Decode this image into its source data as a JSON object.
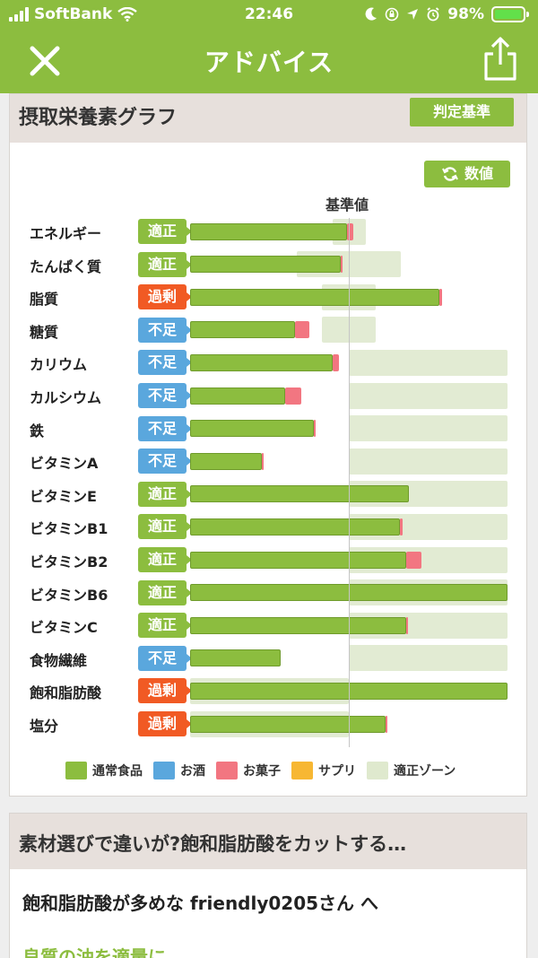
{
  "status_bar": {
    "carrier": "SoftBank",
    "time": "22:46",
    "battery": "98%",
    "battery_level": 0.98
  },
  "header": {
    "title": "アドバイス"
  },
  "icons": {
    "close": "close-icon",
    "share": "share-icon",
    "refresh": "refresh-icon"
  },
  "graph": {
    "title": "摂取栄養素グラフ",
    "criteria_label": "判定基準",
    "value_label": "数値",
    "reference_label": "基準値",
    "nutrients": [
      {
        "name": "エネルギー",
        "status": "適正",
        "food": 0.99,
        "snack": 0.04,
        "zone_from": 0.9,
        "zone_to": 1.11
      },
      {
        "name": "たんぱく質",
        "status": "適正",
        "food": 0.95,
        "snack": 0.01,
        "zone_from": 0.67,
        "zone_to": 1.33
      },
      {
        "name": "脂質",
        "status": "過剰",
        "food": 1.57,
        "snack": 0.02,
        "zone_from": 0.83,
        "zone_to": 1.17
      },
      {
        "name": "糖質",
        "status": "不足",
        "food": 0.66,
        "snack": 0.09,
        "zone_from": 0.83,
        "zone_to": 1.17
      },
      {
        "name": "カリウム",
        "status": "不足",
        "food": 0.9,
        "snack": 0.04,
        "zone_from": 1.0,
        "zone_to": 2.0
      },
      {
        "name": "カルシウム",
        "status": "不足",
        "food": 0.6,
        "snack": 0.1,
        "zone_from": 1.0,
        "zone_to": 2.0
      },
      {
        "name": "鉄",
        "status": "不足",
        "food": 0.78,
        "snack": 0.01,
        "zone_from": 1.0,
        "zone_to": 2.0
      },
      {
        "name": "ビタミンA",
        "status": "不足",
        "food": 0.45,
        "snack": 0.01,
        "zone_from": 1.0,
        "zone_to": 2.0
      },
      {
        "name": "ビタミンE",
        "status": "適正",
        "food": 1.38,
        "snack": 0.0,
        "zone_from": 1.0,
        "zone_to": 2.0
      },
      {
        "name": "ビタミンB1",
        "status": "適正",
        "food": 1.32,
        "snack": 0.02,
        "zone_from": 1.0,
        "zone_to": 2.0
      },
      {
        "name": "ビタミンB2",
        "status": "適正",
        "food": 1.36,
        "snack": 0.1,
        "zone_from": 1.0,
        "zone_to": 2.0
      },
      {
        "name": "ビタミンB6",
        "status": "適正",
        "food": 2.0,
        "snack": 0.0,
        "zone_from": 1.0,
        "zone_to": 2.0
      },
      {
        "name": "ビタミンC",
        "status": "適正",
        "food": 1.36,
        "snack": 0.01,
        "zone_from": 1.0,
        "zone_to": 2.0
      },
      {
        "name": "食物繊維",
        "status": "不足",
        "food": 0.57,
        "snack": 0.0,
        "zone_from": 1.0,
        "zone_to": 2.0
      },
      {
        "name": "飽和脂肪酸",
        "status": "過剰",
        "food": 2.0,
        "snack": 0.0,
        "zone_from": 0.0,
        "zone_to": 1.0
      },
      {
        "name": "塩分",
        "status": "過剰",
        "food": 1.23,
        "snack": 0.01,
        "zone_from": 0.0,
        "zone_to": 1.0
      }
    ],
    "status_colors": {
      "適正": "#8cbd3f",
      "不足": "#5aa7dd",
      "過剰": "#f15a24"
    },
    "legend": [
      {
        "label": "通常食品",
        "color": "#8cbd3f"
      },
      {
        "label": "お酒",
        "color": "#5aa7dd"
      },
      {
        "label": "お菓子",
        "color": "#f27681"
      },
      {
        "label": "サプリ",
        "color": "#f7b733"
      },
      {
        "label": "適正ゾーン",
        "color": "#dfe9ce"
      }
    ]
  },
  "advice": {
    "title": "素材選びで違いが?飽和脂肪酸をカットする…",
    "greeting": "飽和脂肪酸が多めな friendly0205さん へ",
    "subheading": "良質の油を適量に"
  }
}
